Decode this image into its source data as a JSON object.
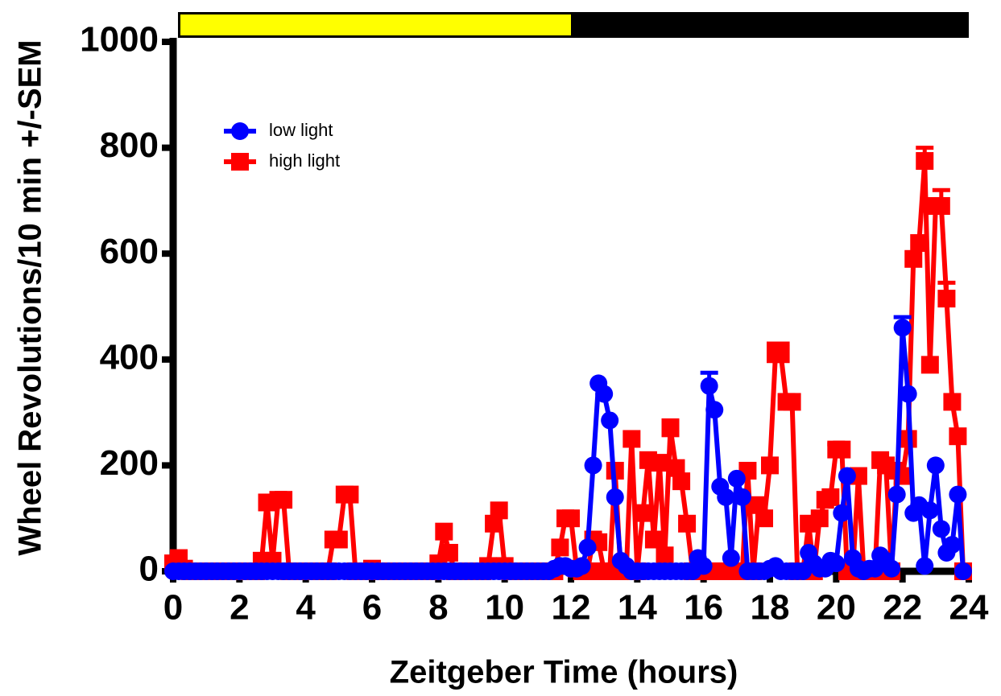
{
  "chart_data": {
    "type": "line",
    "xlabel": "Zeitgeber Time (hours)",
    "ylabel": "Wheel Revolutions/10 min +/-SEM",
    "xlim": [
      0,
      24
    ],
    "ylim": [
      0,
      1000
    ],
    "xticks": [
      0,
      2,
      4,
      6,
      8,
      10,
      12,
      14,
      16,
      18,
      20,
      22,
      24
    ],
    "yticks": [
      0,
      200,
      400,
      600,
      800,
      1000
    ],
    "light_period": [
      0,
      12
    ],
    "light_color": "#ffff00",
    "dark_color": "#000000",
    "x": [
      0,
      0.17,
      0.33,
      0.5,
      0.67,
      0.83,
      1,
      1.17,
      1.33,
      1.5,
      1.67,
      1.83,
      2,
      2.17,
      2.33,
      2.5,
      2.67,
      2.83,
      3,
      3.17,
      3.33,
      3.5,
      3.67,
      3.83,
      4,
      4.17,
      4.33,
      4.5,
      4.67,
      4.83,
      5,
      5.17,
      5.33,
      5.5,
      5.67,
      5.83,
      6,
      6.17,
      6.33,
      6.5,
      6.67,
      6.83,
      7,
      7.17,
      7.33,
      7.5,
      7.67,
      7.83,
      8,
      8.17,
      8.33,
      8.5,
      8.67,
      8.83,
      9,
      9.17,
      9.33,
      9.5,
      9.67,
      9.83,
      10,
      10.17,
      10.33,
      10.5,
      10.67,
      10.83,
      11,
      11.17,
      11.33,
      11.5,
      11.67,
      11.83,
      12,
      12.17,
      12.33,
      12.5,
      12.67,
      12.83,
      13,
      13.17,
      13.33,
      13.5,
      13.67,
      13.83,
      14,
      14.17,
      14.33,
      14.5,
      14.67,
      14.83,
      15,
      15.17,
      15.33,
      15.5,
      15.67,
      15.83,
      16,
      16.17,
      16.33,
      16.5,
      16.67,
      16.83,
      17,
      17.17,
      17.33,
      17.5,
      17.67,
      17.83,
      18,
      18.17,
      18.33,
      18.5,
      18.67,
      18.83,
      19,
      19.17,
      19.33,
      19.5,
      19.67,
      19.83,
      20,
      20.17,
      20.33,
      20.5,
      20.67,
      20.83,
      21,
      21.17,
      21.33,
      21.5,
      21.67,
      21.83,
      22,
      22.17,
      22.33,
      22.5,
      22.67,
      22.83,
      23,
      23.17,
      23.33,
      23.5,
      23.67,
      23.83
    ],
    "series": [
      {
        "name": "high light",
        "color": "#ff0000",
        "marker": "square",
        "values": [
          15,
          25,
          5,
          0,
          0,
          0,
          0,
          0,
          0,
          0,
          0,
          0,
          0,
          0,
          0,
          0,
          20,
          130,
          20,
          135,
          135,
          0,
          0,
          0,
          0,
          0,
          0,
          0,
          0,
          60,
          60,
          145,
          145,
          0,
          0,
          0,
          5,
          0,
          0,
          0,
          0,
          0,
          0,
          0,
          0,
          0,
          0,
          0,
          15,
          75,
          35,
          0,
          0,
          0,
          0,
          0,
          0,
          10,
          90,
          115,
          10,
          0,
          0,
          0,
          0,
          0,
          0,
          0,
          0,
          0,
          45,
          100,
          100,
          5,
          0,
          0,
          60,
          55,
          0,
          0,
          190,
          0,
          0,
          250,
          0,
          110,
          210,
          60,
          205,
          30,
          270,
          195,
          170,
          90,
          0,
          0,
          0,
          0,
          0,
          0,
          0,
          0,
          0,
          0,
          190,
          0,
          125,
          100,
          200,
          410,
          410,
          320,
          320,
          0,
          0,
          90,
          0,
          100,
          135,
          140,
          230,
          230,
          0,
          0,
          180,
          0,
          0,
          0,
          210,
          200,
          0,
          190,
          180,
          250,
          590,
          620,
          775,
          390,
          690,
          690,
          515,
          320,
          255,
          0
        ],
        "errors": [
          0,
          0,
          0,
          0,
          0,
          0,
          0,
          0,
          0,
          0,
          0,
          0,
          0,
          0,
          0,
          0,
          0,
          0,
          0,
          0,
          0,
          0,
          0,
          0,
          0,
          0,
          0,
          0,
          0,
          0,
          0,
          0,
          0,
          0,
          0,
          0,
          0,
          0,
          0,
          0,
          0,
          0,
          0,
          0,
          0,
          0,
          0,
          0,
          0,
          0,
          0,
          0,
          0,
          0,
          0,
          0,
          0,
          0,
          0,
          0,
          0,
          0,
          0,
          0,
          0,
          0,
          0,
          0,
          0,
          0,
          0,
          0,
          0,
          0,
          0,
          0,
          0,
          0,
          0,
          0,
          0,
          0,
          0,
          0,
          0,
          0,
          0,
          0,
          0,
          0,
          15,
          0,
          0,
          0,
          0,
          0,
          0,
          0,
          0,
          0,
          0,
          0,
          0,
          0,
          0,
          0,
          0,
          0,
          0,
          20,
          20,
          0,
          0,
          0,
          0,
          0,
          0,
          0,
          0,
          0,
          10,
          0,
          0,
          0,
          0,
          0,
          0,
          0,
          0,
          0,
          0,
          0,
          0,
          0,
          0,
          0,
          25,
          0,
          10,
          30,
          30,
          0,
          0,
          0
        ]
      },
      {
        "name": "low light",
        "color": "#0000ff",
        "marker": "circle",
        "values": [
          0,
          0,
          0,
          0,
          0,
          0,
          0,
          0,
          0,
          0,
          0,
          0,
          0,
          0,
          0,
          0,
          0,
          0,
          0,
          0,
          0,
          0,
          0,
          0,
          0,
          0,
          0,
          0,
          0,
          0,
          0,
          0,
          0,
          0,
          0,
          0,
          0,
          0,
          0,
          0,
          0,
          0,
          0,
          0,
          0,
          0,
          0,
          0,
          0,
          0,
          0,
          0,
          0,
          0,
          0,
          0,
          0,
          0,
          0,
          0,
          0,
          0,
          0,
          0,
          0,
          0,
          0,
          0,
          0,
          5,
          10,
          10,
          5,
          5,
          10,
          45,
          200,
          355,
          335,
          285,
          140,
          20,
          10,
          0,
          0,
          0,
          0,
          0,
          0,
          0,
          0,
          0,
          0,
          0,
          0,
          25,
          10,
          350,
          305,
          160,
          140,
          25,
          175,
          140,
          0,
          0,
          0,
          0,
          5,
          10,
          0,
          0,
          0,
          0,
          0,
          35,
          15,
          5,
          5,
          20,
          15,
          110,
          180,
          25,
          5,
          0,
          5,
          5,
          30,
          20,
          5,
          145,
          460,
          335,
          110,
          125,
          10,
          115,
          200,
          80,
          35,
          50,
          145,
          0
        ],
        "errors": [
          0,
          0,
          0,
          0,
          0,
          0,
          0,
          0,
          0,
          0,
          0,
          0,
          0,
          0,
          0,
          0,
          0,
          0,
          0,
          0,
          0,
          0,
          0,
          0,
          0,
          0,
          0,
          0,
          0,
          0,
          0,
          0,
          0,
          0,
          0,
          0,
          0,
          0,
          0,
          0,
          0,
          0,
          0,
          0,
          0,
          0,
          0,
          0,
          0,
          0,
          0,
          0,
          0,
          0,
          0,
          0,
          0,
          0,
          0,
          0,
          0,
          0,
          0,
          0,
          0,
          0,
          0,
          0,
          0,
          0,
          0,
          0,
          0,
          0,
          0,
          0,
          0,
          0,
          0,
          0,
          0,
          0,
          0,
          0,
          0,
          0,
          0,
          0,
          0,
          0,
          0,
          0,
          0,
          0,
          0,
          0,
          0,
          25,
          0,
          0,
          0,
          0,
          0,
          0,
          0,
          0,
          0,
          0,
          0,
          0,
          0,
          0,
          0,
          0,
          0,
          0,
          0,
          0,
          0,
          0,
          0,
          0,
          0,
          0,
          0,
          0,
          0,
          0,
          0,
          0,
          0,
          0,
          20,
          0,
          0,
          0,
          0,
          0,
          0,
          0,
          0,
          0,
          0,
          0
        ]
      }
    ],
    "legend_order": [
      1,
      0
    ]
  }
}
